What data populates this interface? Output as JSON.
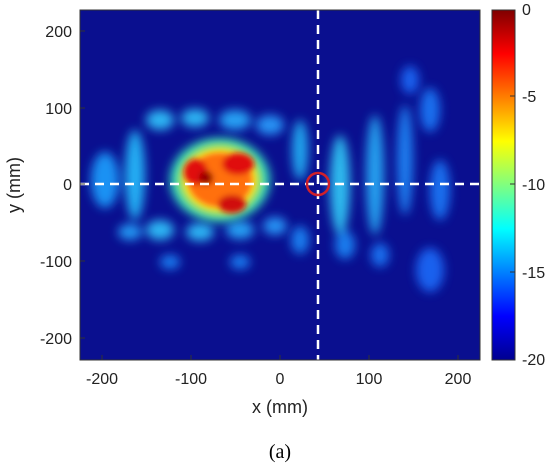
{
  "chart_data": {
    "type": "heatmap",
    "title": "",
    "xlabel": "x (mm)",
    "ylabel": "y (mm)",
    "xlim": [
      -225,
      225
    ],
    "ylim": [
      -225,
      225
    ],
    "x_ticks": [
      -200,
      -100,
      0,
      100,
      200
    ],
    "y_ticks": [
      200,
      100,
      0,
      -100,
      -200
    ],
    "colorbar": {
      "range": [
        -20,
        0
      ],
      "ticks": [
        0,
        -5,
        -10,
        -15,
        -20
      ],
      "colormap": "jet"
    },
    "crosshair": {
      "x": 42,
      "y": 0,
      "style": "white dashed"
    },
    "marker": {
      "x": 42,
      "y": 0,
      "shape": "circle",
      "color": "#d0202a"
    },
    "hotspots": [
      {
        "x": -75,
        "y": 15,
        "level": 0
      },
      {
        "x": -35,
        "y": 25,
        "level": -1
      },
      {
        "x": -55,
        "y": -28,
        "level": -1
      },
      {
        "x": -100,
        "y": -20,
        "level": -2
      }
    ],
    "background_level": -20,
    "grid": false
  },
  "caption": "(a)"
}
